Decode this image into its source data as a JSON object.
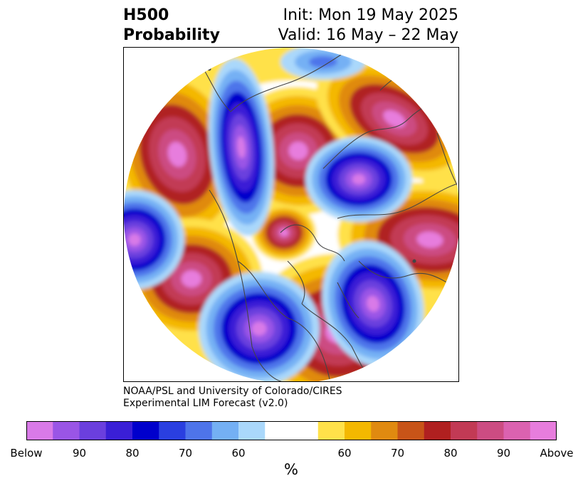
{
  "title": {
    "left_line1": "H500",
    "left_line2": "Probability",
    "right_line1": "Init: Mon 19 May 2025",
    "right_line2": "Valid: 16 May – 22 May"
  },
  "credit": {
    "line1": "NOAA/PSL and University of Colorado/CIRES",
    "line2": "Experimental LIM Forecast (v2.0)"
  },
  "colorbar": {
    "unit": "%",
    "colors": [
      "#d97ae8",
      "#9a55e6",
      "#6b3fde",
      "#3a1fd6",
      "#0000cc",
      "#2a3fe0",
      "#4e74ea",
      "#74b0f4",
      "#aad8fb",
      "#ffffff",
      "#ffffff",
      "#ffe14a",
      "#f4b800",
      "#e08a10",
      "#c85418",
      "#b02020",
      "#c23a55",
      "#cc4c82",
      "#db62b0",
      "#e77ddd"
    ],
    "tick_labels": [
      "Below",
      "90",
      "80",
      "70",
      "60",
      "60",
      "70",
      "80",
      "90",
      "Above"
    ]
  },
  "map": {
    "projection": "north-polar-stereographic",
    "coastline_color": "#444444",
    "palette": {
      "below_strong": "#d97ae8",
      "below_mid": "#0000cc",
      "below_weak": "#aad8fb",
      "neutral": "#ffffff",
      "above_weak": "#ffe14a",
      "above_mid": "#b02020",
      "above_strong": "#e77ddd"
    }
  }
}
